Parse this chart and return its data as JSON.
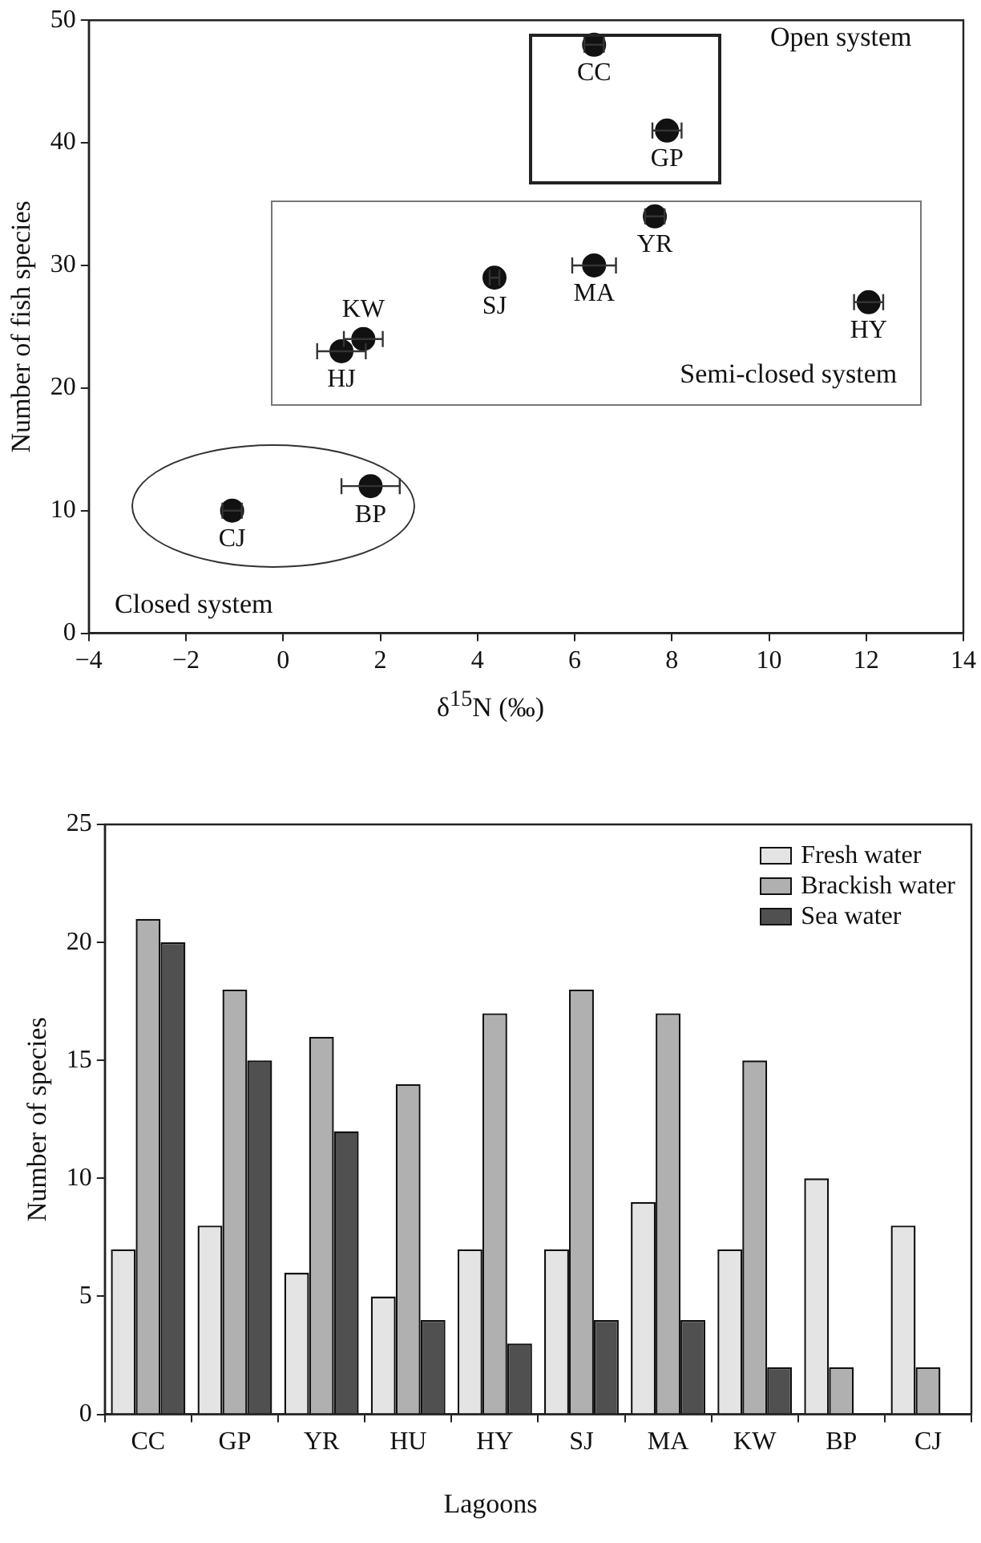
{
  "chart_data": [
    {
      "type": "scatter",
      "xlabel": "δ$^{15}$N (‰)",
      "ylabel": "Number of fish species",
      "xlim": [
        -4,
        14
      ],
      "xticks": [
        {
          "value": -4,
          "label": "−4"
        },
        {
          "value": -2,
          "label": "−2"
        },
        0,
        2,
        4,
        6,
        8,
        10,
        12,
        14
      ],
      "ylim": [
        0,
        50
      ],
      "yticks": [
        0,
        10,
        20,
        30,
        40,
        50
      ],
      "grid": false,
      "legend": false,
      "marker": "circle",
      "annotations": [
        "Open system",
        "Semi-closed system",
        "Closed system"
      ],
      "series": [
        {
          "name": "CC",
          "color": "#111111",
          "x": [
            6.4
          ],
          "values": [
            48
          ],
          "xerrors": [
            0.2
          ]
        },
        {
          "name": "GP",
          "color": "#111111",
          "x": [
            7.9
          ],
          "values": [
            41
          ],
          "xerrors": [
            0.3
          ]
        },
        {
          "name": "YR",
          "color": "#111111",
          "x": [
            7.65
          ],
          "values": [
            34
          ],
          "xerrors": [
            0.2
          ]
        },
        {
          "name": "MA",
          "color": "#111111",
          "x": [
            6.4
          ],
          "values": [
            30
          ],
          "xerrors": [
            0.45
          ]
        },
        {
          "name": "SJ",
          "color": "#111111",
          "x": [
            4.35
          ],
          "values": [
            29
          ],
          "xerrors": [
            0.1
          ]
        },
        {
          "name": "KW",
          "color": "#111111",
          "x": [
            1.65
          ],
          "values": [
            24
          ],
          "xerrors": [
            0.4
          ]
        },
        {
          "name": "HJ",
          "color": "#111111",
          "x": [
            1.2
          ],
          "values": [
            23
          ],
          "xerrors": [
            0.5
          ]
        },
        {
          "name": "HY",
          "color": "#111111",
          "x": [
            12.05
          ],
          "values": [
            27
          ],
          "xerrors": [
            0.3
          ]
        },
        {
          "name": "CJ",
          "color": "#111111",
          "x": [
            -1.05
          ],
          "values": [
            10
          ],
          "xerrors": [
            0.2
          ]
        },
        {
          "name": "BP",
          "color": "#111111",
          "x": [
            1.8
          ],
          "values": [
            12
          ],
          "xerrors": [
            0.6
          ]
        }
      ]
    },
    {
      "type": "bar",
      "xlabel": "Lagoons",
      "ylabel": "Number of species",
      "categories": [
        "CC",
        "GP",
        "YR",
        "HU",
        "HY",
        "SJ",
        "MA",
        "KW",
        "BP",
        "CJ"
      ],
      "ylim": [
        0,
        25
      ],
      "yticks": [
        0,
        5,
        10,
        15,
        20,
        25
      ],
      "grid": false,
      "legend": "top right",
      "series": [
        {
          "name": "Fresh water",
          "color": "#e4e4e4",
          "values": [
            7,
            8,
            6,
            5,
            7,
            7,
            9,
            7,
            10,
            8
          ]
        },
        {
          "name": "Brackish water",
          "color": "#b0b0b0",
          "values": [
            21,
            18,
            16,
            14,
            17,
            18,
            17,
            15,
            2,
            2
          ]
        },
        {
          "name": "Sea water",
          "color": "#505050",
          "values": [
            20,
            15,
            12,
            4,
            3,
            4,
            4,
            2,
            null,
            null
          ]
        }
      ]
    }
  ]
}
